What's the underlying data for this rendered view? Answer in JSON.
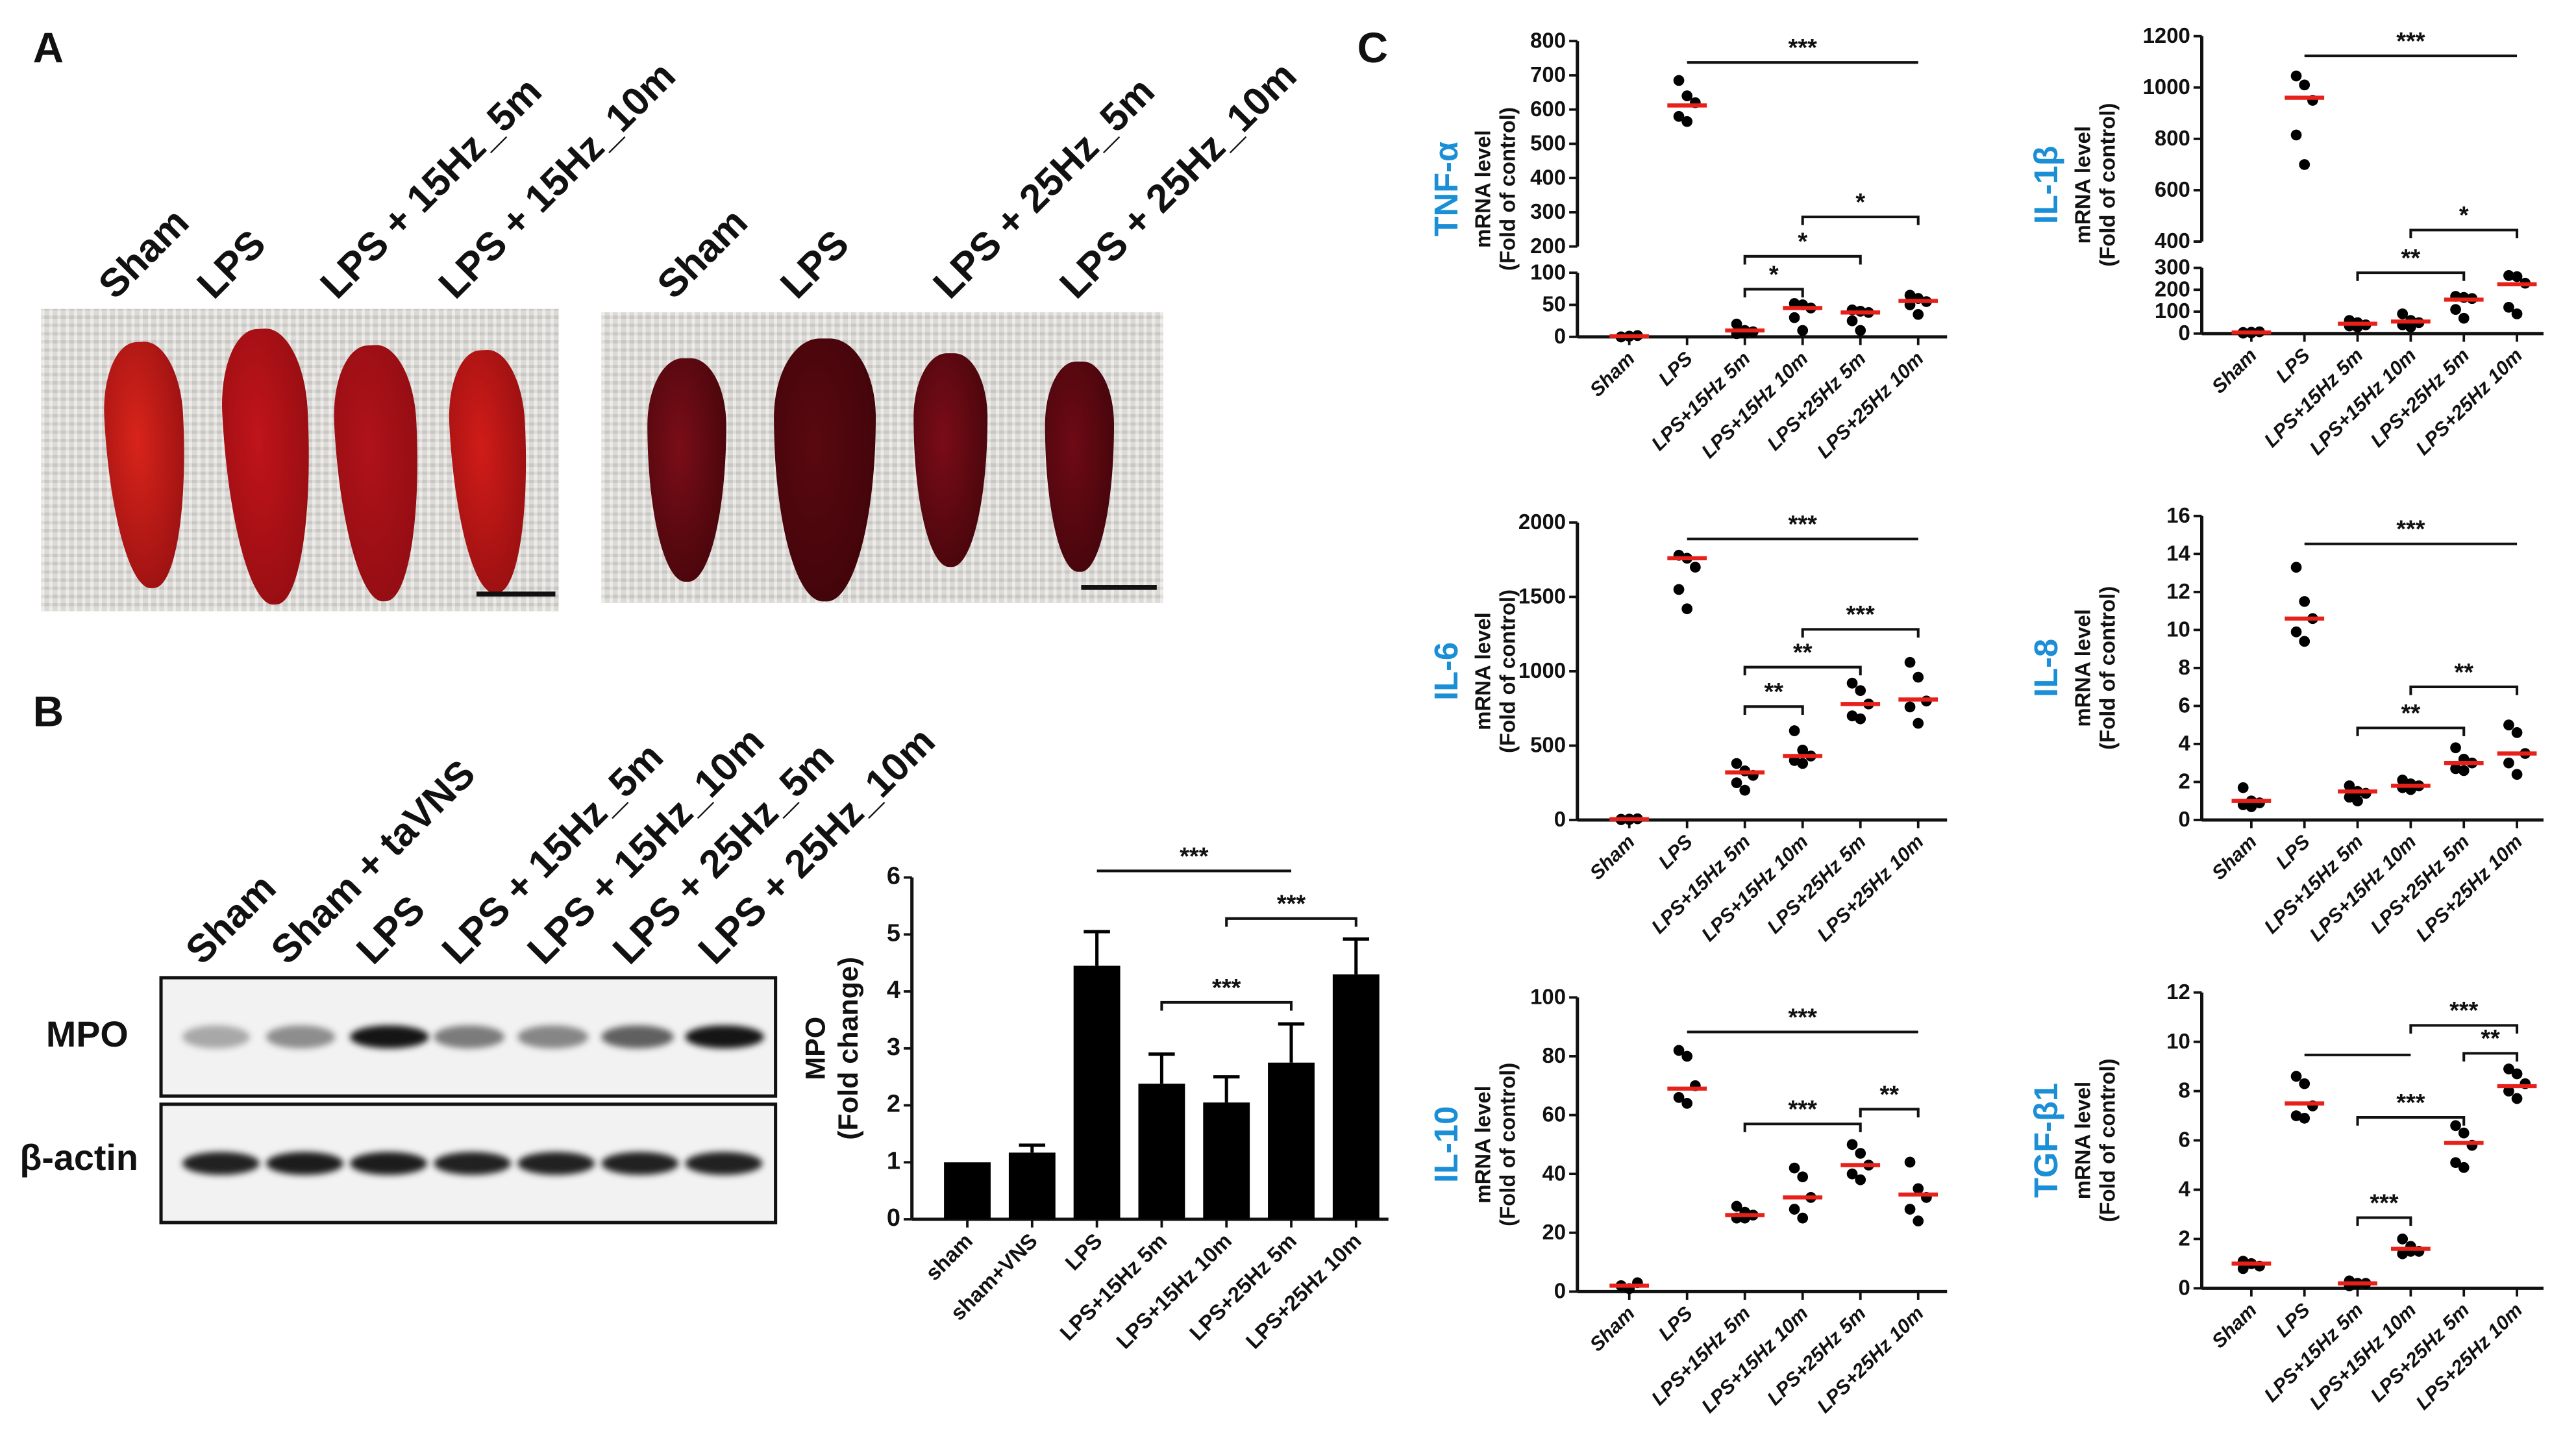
{
  "panels": {
    "a": "A",
    "b": "B",
    "c": "C"
  },
  "panel_a": {
    "left_labels": [
      "Sham",
      "LPS",
      "LPS + 15Hz_5m",
      "LPS + 15Hz_10m"
    ],
    "right_labels": [
      "Sham",
      "LPS",
      "LPS + 25Hz_5m",
      "LPS + 25Hz_10m"
    ],
    "left_colors": [
      "#d8241a",
      "#c0141a",
      "#b0121a",
      "#d01c18"
    ],
    "right_colors": [
      "#7a0d18",
      "#5a0810",
      "#7a0c18",
      "#6e0a16"
    ]
  },
  "panel_b": {
    "lane_labels": [
      "Sham",
      "Sham + taVNS",
      "LPS",
      "LPS + 15Hz_5m",
      "LPS + 15Hz_10m",
      "LPS + 25Hz_5m",
      "LPS + 25Hz_10m"
    ],
    "rows": [
      {
        "label": "MPO",
        "band_intensity": [
          0.3,
          0.42,
          0.95,
          0.5,
          0.45,
          0.62,
          0.95
        ]
      },
      {
        "label": "β-actin",
        "band_intensity": [
          0.9,
          0.92,
          0.92,
          0.9,
          0.9,
          0.9,
          0.9
        ]
      }
    ]
  },
  "chart_data": [
    {
      "id": "mpo",
      "type": "bar",
      "ylabel": "MPO",
      "ylabel2": "(Fold change)",
      "categories": [
        "sham",
        "sham+VNS",
        "LPS",
        "LPS+15Hz 5m",
        "LPS+15Hz 10m",
        "LPS+25Hz 5m",
        "LPS+25Hz 10m"
      ],
      "values": [
        1.0,
        1.17,
        4.45,
        2.38,
        2.05,
        2.75,
        4.3
      ],
      "errors": [
        0,
        0.13,
        0.6,
        0.52,
        0.45,
        0.68,
        0.62
      ],
      "ylim": [
        0,
        6
      ],
      "yticks": [
        "0",
        "1",
        "2",
        "3",
        "4",
        "5",
        "6"
      ],
      "annotations": [
        {
          "from": 2,
          "to": 5,
          "label": "***"
        },
        {
          "from": 4,
          "to": 6,
          "label": "***"
        },
        {
          "from": 3,
          "to": 5,
          "label": "***"
        }
      ]
    },
    {
      "id": "tnf",
      "type": "scatter",
      "gene": "TNF-α",
      "ylabel": "mRNA level",
      "ylabel2": "(Fold of control)",
      "categories": [
        "Sham",
        "LPS",
        "LPS+15Hz 5m",
        "LPS+15Hz 10m",
        "LPS+25Hz 5m",
        "LPS+25Hz 10m"
      ],
      "yticks": [
        "0",
        "50",
        "100",
        "200",
        "300",
        "400",
        "500",
        "600",
        "700",
        "800"
      ],
      "axis_break": [
        100,
        200
      ],
      "ylim": [
        0,
        800
      ],
      "means": [
        1,
        612,
        10,
        45,
        38,
        56
      ],
      "points": [
        [
          0,
          1,
          2,
          0,
          1
        ],
        [
          685,
          640,
          620,
          580,
          565
        ],
        [
          20,
          10,
          8,
          5,
          6
        ],
        [
          52,
          50,
          45,
          30,
          10
        ],
        [
          42,
          40,
          38,
          25,
          10
        ],
        [
          65,
          60,
          55,
          50,
          35
        ]
      ],
      "annotations": [
        {
          "from": 1,
          "to": 5,
          "label": "***"
        },
        {
          "from": 3,
          "to": 5,
          "label": "*"
        },
        {
          "from": 2,
          "to": 4,
          "label": "*"
        },
        {
          "from": 2,
          "to": 3,
          "label": "*"
        }
      ]
    },
    {
      "id": "il1b",
      "type": "scatter",
      "gene": "IL-1β",
      "ylabel": "mRNA level",
      "ylabel2": "(Fold of control)",
      "categories": [
        "Sham",
        "LPS",
        "LPS+15Hz 5m",
        "LPS+15Hz 10m",
        "LPS+25Hz 5m",
        "LPS+25Hz 10m"
      ],
      "yticks": [
        "0",
        "100",
        "200",
        "300",
        "400",
        "600",
        "800",
        "1000",
        "1200"
      ],
      "axis_break": [
        300,
        400
      ],
      "ylim": [
        0,
        1200
      ],
      "means": [
        5,
        960,
        45,
        55,
        155,
        225
      ],
      "points": [
        [
          5,
          3,
          8,
          2,
          6
        ],
        [
          1045,
          1010,
          950,
          815,
          700
        ],
        [
          60,
          50,
          40,
          35,
          30
        ],
        [
          90,
          60,
          50,
          40,
          30
        ],
        [
          170,
          165,
          160,
          110,
          70
        ],
        [
          265,
          260,
          230,
          120,
          90
        ]
      ],
      "annotations": [
        {
          "from": 1,
          "to": 5,
          "label": "***"
        },
        {
          "from": 3,
          "to": 5,
          "label": "*"
        },
        {
          "from": 2,
          "to": 4,
          "label": "**"
        }
      ]
    },
    {
      "id": "il6",
      "type": "scatter",
      "gene": "IL-6",
      "ylabel": "mRNA level",
      "ylabel2": "(Fold of control)",
      "categories": [
        "Sham",
        "LPS",
        "LPS+15Hz 5m",
        "LPS+15Hz 10m",
        "LPS+25Hz 5m",
        "LPS+25Hz 10m"
      ],
      "yticks": [
        "0",
        "500",
        "1000",
        "1500",
        "2000"
      ],
      "ylim": [
        0,
        2000
      ],
      "means": [
        5,
        1760,
        320,
        430,
        780,
        810
      ],
      "points": [
        [
          5,
          3,
          8,
          2,
          6
        ],
        [
          1780,
          1760,
          1700,
          1550,
          1420
        ],
        [
          380,
          330,
          300,
          250,
          200
        ],
        [
          600,
          470,
          430,
          400,
          380
        ],
        [
          920,
          870,
          780,
          700,
          680
        ],
        [
          1060,
          960,
          800,
          760,
          650
        ]
      ],
      "annotations": [
        {
          "from": 1,
          "to": 5,
          "label": "***"
        },
        {
          "from": 3,
          "to": 5,
          "label": "***"
        },
        {
          "from": 2,
          "to": 4,
          "label": "**"
        },
        {
          "from": 2,
          "to": 3,
          "label": "**"
        }
      ]
    },
    {
      "id": "il8",
      "type": "scatter",
      "gene": "IL-8",
      "ylabel": "mRNA level",
      "ylabel2": "(Fold of control)",
      "categories": [
        "Sham",
        "LPS",
        "LPS+15Hz 5m",
        "LPS+15Hz 10m",
        "LPS+25Hz 5m",
        "LPS+25Hz 10m"
      ],
      "yticks": [
        "0",
        "2",
        "4",
        "6",
        "8",
        "10",
        "12",
        "14",
        "16"
      ],
      "ylim": [
        0,
        16
      ],
      "means": [
        1.0,
        10.6,
        1.5,
        1.8,
        3.0,
        3.5
      ],
      "points": [
        [
          1.7,
          1.0,
          0.9,
          0.8,
          0.7
        ],
        [
          13.3,
          11.5,
          10.6,
          9.9,
          9.4
        ],
        [
          1.8,
          1.5,
          1.4,
          1.2,
          1.0
        ],
        [
          2.1,
          1.9,
          1.8,
          1.7,
          1.6
        ],
        [
          3.8,
          3.2,
          3.0,
          2.7,
          2.6
        ],
        [
          5.0,
          4.6,
          3.5,
          3.0,
          2.4
        ]
      ],
      "annotations": [
        {
          "from": 1,
          "to": 5,
          "label": "***"
        },
        {
          "from": 3,
          "to": 5,
          "label": "**"
        },
        {
          "from": 2,
          "to": 4,
          "label": "**"
        }
      ]
    },
    {
      "id": "il10",
      "type": "scatter",
      "gene": "IL-10",
      "ylabel": "mRNA level",
      "ylabel2": "(Fold of control)",
      "categories": [
        "Sham",
        "LPS",
        "LPS+15Hz 5m",
        "LPS+15Hz 10m",
        "LPS+25Hz 5m",
        "LPS+25Hz 10m"
      ],
      "yticks": [
        "0",
        "20",
        "40",
        "60",
        "80",
        "100"
      ],
      "ylim": [
        0,
        100
      ],
      "means": [
        2,
        69,
        26,
        32,
        43,
        33
      ],
      "points": [
        [
          2,
          1,
          3,
          2,
          1
        ],
        [
          82,
          80,
          70,
          66,
          64
        ],
        [
          29,
          27,
          26,
          25,
          25
        ],
        [
          42,
          39,
          32,
          28,
          25
        ],
        [
          50,
          47,
          43,
          40,
          38
        ],
        [
          44,
          35,
          32,
          28,
          24
        ]
      ],
      "annotations": [
        {
          "from": 1,
          "to": 5,
          "label": "***"
        },
        {
          "from": 2,
          "to": 4,
          "label": "***"
        },
        {
          "from": 4,
          "to": 5,
          "label": "**"
        }
      ]
    },
    {
      "id": "tgfb1",
      "type": "scatter",
      "gene": "TGF-β1",
      "ylabel": "mRNA level",
      "ylabel2": "(Fold of control)",
      "categories": [
        "Sham",
        "LPS",
        "LPS+15Hz 5m",
        "LPS+15Hz 10m",
        "LPS+25Hz 5m",
        "LPS+25Hz 10m"
      ],
      "yticks": [
        "0",
        "2",
        "4",
        "6",
        "8",
        "10",
        "12"
      ],
      "ylim": [
        0,
        12
      ],
      "means": [
        1.0,
        7.5,
        0.2,
        1.6,
        5.9,
        8.2
      ],
      "points": [
        [
          1.1,
          1.0,
          0.9,
          0.8,
          1.0
        ],
        [
          8.6,
          8.3,
          7.4,
          7.0,
          6.9
        ],
        [
          0.3,
          0.2,
          0.2,
          0.1,
          0.2
        ],
        [
          2.0,
          1.7,
          1.5,
          1.4,
          1.5
        ],
        [
          6.6,
          6.3,
          5.8,
          5.1,
          4.9
        ],
        [
          8.9,
          8.7,
          8.3,
          8.0,
          7.7
        ]
      ],
      "annotations": [
        {
          "from": 1,
          "to": 3,
          "label": ""
        },
        {
          "from": 3,
          "to": 5,
          "label": "***"
        },
        {
          "from": 4,
          "to": 5,
          "label": "**"
        },
        {
          "from": 2,
          "to": 4,
          "label": "***"
        },
        {
          "from": 2,
          "to": 3,
          "label": "***"
        }
      ]
    }
  ],
  "colors": {
    "gene_label": "#1a8fd6",
    "mean_line": "#e8201a",
    "bar": "#000000"
  }
}
